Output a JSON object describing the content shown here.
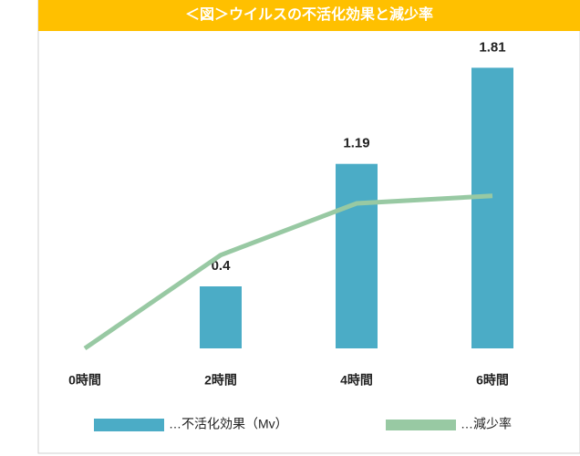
{
  "chart_data": {
    "type": "bar-line",
    "title": "＜図＞ウイルスの不活化効果と減少率",
    "categories": [
      "0時間",
      "2時間",
      "4時間",
      "6時間"
    ],
    "series": [
      {
        "name": "…不活化効果（Mv）",
        "type": "bar",
        "color": "#4bacc6",
        "values": [
          0,
          0.4,
          1.19,
          1.81
        ],
        "value_labels": [
          null,
          "0.4",
          "1.19",
          "1.81"
        ]
      },
      {
        "name": "…減少率",
        "type": "line",
        "color": "#98c9a3",
        "axis": "y2",
        "values": [
          0,
          60.2,
          93.5,
          98.4
        ]
      }
    ],
    "ylim": [
      0,
      2
    ],
    "y2lim": [
      0,
      200
    ]
  }
}
